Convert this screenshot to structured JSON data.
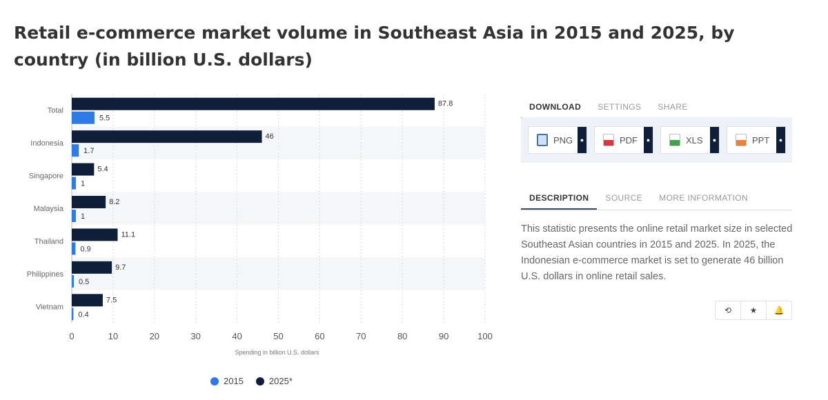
{
  "page": {
    "title": "Retail e-commerce market volume in Southeast Asia in 2015 and 2025, by country (in billion U.S. dollars)"
  },
  "chart_data": {
    "type": "bar",
    "orientation": "horizontal",
    "categories": [
      "Total",
      "Indonesia",
      "Singapore",
      "Malaysia",
      "Thailand",
      "Philippines",
      "Vietnam"
    ],
    "series": [
      {
        "name": "2015",
        "color": "#2e7be6",
        "values": [
          5.5,
          1.7,
          1,
          1,
          0.9,
          0.5,
          0.4
        ]
      },
      {
        "name": "2025*",
        "color": "#0f1f3a",
        "values": [
          87.8,
          46,
          5.4,
          8.2,
          11.1,
          9.7,
          7.5
        ]
      }
    ],
    "value_labels_2015": [
      "5.5",
      "1.7",
      "1",
      "1",
      "0.9",
      "0.5",
      "0.4"
    ],
    "value_labels_2025": [
      "87.8",
      "46",
      "5.4",
      "8.2",
      "11.1",
      "9.7",
      "7.5"
    ],
    "xticks": [
      0,
      10,
      20,
      30,
      40,
      50,
      60,
      70,
      80,
      90,
      100
    ],
    "xlim": [
      0,
      100
    ],
    "xlabel": "Spending in billion U.S. dollars",
    "ylabel": "",
    "legend": [
      "2015",
      "2025*"
    ],
    "legend_position": "bottom",
    "grid": true
  },
  "tools": {
    "tabs": [
      "DOWNLOAD",
      "SETTINGS",
      "SHARE"
    ],
    "active_tab": "DOWNLOAD",
    "downloads": [
      {
        "label": "PNG",
        "icon": "png-file-icon",
        "color": "#4a6fa5"
      },
      {
        "label": "PDF",
        "icon": "pdf-file-icon",
        "color": "#d9363e"
      },
      {
        "label": "XLS",
        "icon": "xls-file-icon",
        "color": "#3fa34d"
      },
      {
        "label": "PPT",
        "icon": "ppt-file-icon",
        "color": "#e8833a"
      }
    ]
  },
  "info": {
    "tabs": [
      "DESCRIPTION",
      "SOURCE",
      "MORE INFORMATION"
    ],
    "active_tab": "DESCRIPTION",
    "description": "This statistic presents the online retail market size in selected Southeast Asian countries in 2015 and 2025. In 2025, the Indonesian e-commerce market is set to generate 46 billion U.S. dollars in online retail sales."
  },
  "actions": [
    {
      "name": "history-icon",
      "glyph": "⟲"
    },
    {
      "name": "star-icon",
      "glyph": "★"
    },
    {
      "name": "bell-icon",
      "glyph": "🔔"
    }
  ]
}
